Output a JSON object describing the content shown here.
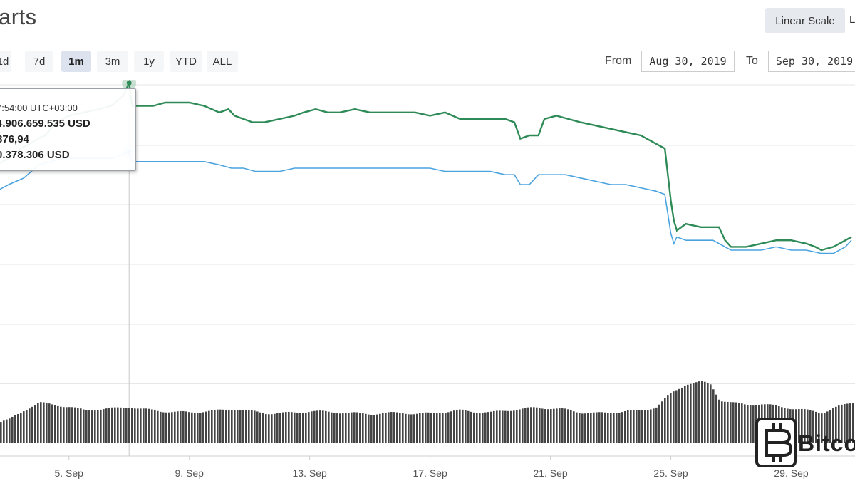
{
  "header": {
    "title": "arts"
  },
  "scale": {
    "linear_label": "Linear Scale",
    "log_label_partial": "L"
  },
  "range_buttons": [
    {
      "label": "1d",
      "active": false
    },
    {
      "label": "7d",
      "active": false
    },
    {
      "label": "1m",
      "active": true
    },
    {
      "label": "3m",
      "active": false
    },
    {
      "label": "1y",
      "active": false
    },
    {
      "label": "YTD",
      "active": false
    },
    {
      "label": "ALL",
      "active": false
    }
  ],
  "date_range": {
    "from_label": "From",
    "from_value": "Aug 30, 2019",
    "to_label": "To",
    "to_value": "Sep 30, 2019"
  },
  "tooltip": {
    "time": "7:54:00 UTC+03:00",
    "line1": "4.906.659.535 USD",
    "line2": "876,94",
    "line3": "0.378.306 USD"
  },
  "watermark": {
    "text": "Bitco"
  },
  "colors": {
    "market_cap": "#2e8b57",
    "price": "#4aa3df",
    "volume": "#444444",
    "grid": "#e6e6e6"
  },
  "chart_data": {
    "type": "line",
    "x_ticks": [
      "5. Sep",
      "9. Sep",
      "13. Sep",
      "17. Sep",
      "21. Sep",
      "25. Sep",
      "29. Sep"
    ],
    "x_range": [
      2.0,
      31.0
    ],
    "y_range": [
      0,
      100
    ],
    "grid": true,
    "legend": "none",
    "highlight_x": 7.0,
    "series": [
      {
        "role": "market_cap",
        "points": [
          [
            2.0,
            61
          ],
          [
            2.6,
            61
          ],
          [
            3.0,
            63
          ],
          [
            3.4,
            66
          ],
          [
            3.8,
            68
          ],
          [
            4.2,
            70
          ],
          [
            4.6,
            74
          ],
          [
            5.0,
            76
          ],
          [
            5.5,
            77
          ],
          [
            6.0,
            78
          ],
          [
            6.4,
            79
          ],
          [
            6.8,
            82
          ],
          [
            7.0,
            86
          ],
          [
            7.1,
            79
          ],
          [
            7.4,
            79
          ],
          [
            7.8,
            79
          ],
          [
            8.2,
            80
          ],
          [
            8.6,
            80
          ],
          [
            9.0,
            80
          ],
          [
            9.5,
            79
          ],
          [
            10.0,
            77
          ],
          [
            10.3,
            78
          ],
          [
            10.5,
            76
          ],
          [
            10.8,
            75
          ],
          [
            11.1,
            74
          ],
          [
            11.5,
            74
          ],
          [
            12.0,
            75
          ],
          [
            12.5,
            76
          ],
          [
            12.8,
            77
          ],
          [
            13.2,
            78
          ],
          [
            13.6,
            77
          ],
          [
            14.0,
            77
          ],
          [
            14.5,
            78
          ],
          [
            15.0,
            77
          ],
          [
            15.5,
            77
          ],
          [
            16.0,
            77
          ],
          [
            16.5,
            77
          ],
          [
            17.0,
            76
          ],
          [
            17.5,
            77
          ],
          [
            18.0,
            75
          ],
          [
            18.5,
            75
          ],
          [
            19.0,
            75
          ],
          [
            19.5,
            75
          ],
          [
            19.8,
            74
          ],
          [
            20.0,
            69
          ],
          [
            20.3,
            70
          ],
          [
            20.6,
            70
          ],
          [
            20.8,
            75
          ],
          [
            21.2,
            76
          ],
          [
            21.6,
            75
          ],
          [
            22.0,
            74
          ],
          [
            22.5,
            73
          ],
          [
            23.0,
            72
          ],
          [
            23.5,
            71
          ],
          [
            24.0,
            70
          ],
          [
            24.4,
            68
          ],
          [
            24.8,
            66
          ],
          [
            25.0,
            50
          ],
          [
            25.1,
            44
          ],
          [
            25.2,
            41
          ],
          [
            25.5,
            43
          ],
          [
            26.0,
            42
          ],
          [
            26.4,
            42
          ],
          [
            26.6,
            42
          ],
          [
            26.8,
            38
          ],
          [
            27.0,
            36
          ],
          [
            27.5,
            36
          ],
          [
            28.0,
            37
          ],
          [
            28.5,
            38
          ],
          [
            29.0,
            38
          ],
          [
            29.5,
            37
          ],
          [
            29.8,
            36
          ],
          [
            30.0,
            35
          ],
          [
            30.4,
            36
          ],
          [
            30.8,
            38
          ],
          [
            31.0,
            39
          ]
        ]
      },
      {
        "role": "price",
        "points": [
          [
            2.0,
            52
          ],
          [
            2.6,
            53
          ],
          [
            3.0,
            55
          ],
          [
            3.5,
            57
          ],
          [
            4.0,
            61
          ],
          [
            4.4,
            62
          ],
          [
            4.8,
            63
          ],
          [
            5.2,
            63
          ],
          [
            5.6,
            63
          ],
          [
            6.0,
            63
          ],
          [
            6.5,
            63
          ],
          [
            7.0,
            65
          ],
          [
            7.1,
            62
          ],
          [
            7.5,
            62
          ],
          [
            8.0,
            62
          ],
          [
            8.5,
            62
          ],
          [
            9.0,
            62
          ],
          [
            9.5,
            62
          ],
          [
            10.0,
            61
          ],
          [
            10.4,
            60
          ],
          [
            10.8,
            60
          ],
          [
            11.2,
            59
          ],
          [
            11.6,
            59
          ],
          [
            12.0,
            59
          ],
          [
            12.5,
            60
          ],
          [
            13.0,
            60
          ],
          [
            13.5,
            60
          ],
          [
            14.0,
            60
          ],
          [
            14.5,
            60
          ],
          [
            15.0,
            60
          ],
          [
            16.0,
            60
          ],
          [
            17.0,
            60
          ],
          [
            17.5,
            59
          ],
          [
            18.0,
            59
          ],
          [
            19.0,
            59
          ],
          [
            19.5,
            58
          ],
          [
            19.8,
            58
          ],
          [
            20.0,
            55
          ],
          [
            20.3,
            55
          ],
          [
            20.6,
            58
          ],
          [
            21.0,
            58
          ],
          [
            21.5,
            58
          ],
          [
            22.0,
            57
          ],
          [
            22.5,
            56
          ],
          [
            23.0,
            55
          ],
          [
            23.5,
            55
          ],
          [
            24.0,
            54
          ],
          [
            24.5,
            53
          ],
          [
            24.8,
            52
          ],
          [
            25.0,
            40
          ],
          [
            25.1,
            37
          ],
          [
            25.2,
            39
          ],
          [
            25.5,
            38
          ],
          [
            26.0,
            38
          ],
          [
            26.4,
            38
          ],
          [
            26.8,
            36
          ],
          [
            27.0,
            35
          ],
          [
            27.5,
            35
          ],
          [
            28.0,
            35
          ],
          [
            28.5,
            36
          ],
          [
            29.0,
            35
          ],
          [
            29.5,
            35
          ],
          [
            30.0,
            34
          ],
          [
            30.4,
            34
          ],
          [
            30.8,
            36
          ],
          [
            31.0,
            38
          ]
        ]
      },
      {
        "role": "volume",
        "points": [
          [
            2.0,
            22
          ],
          [
            3.0,
            34
          ],
          [
            3.5,
            48
          ],
          [
            4.0,
            58
          ],
          [
            4.5,
            55
          ],
          [
            5.0,
            52
          ],
          [
            5.5,
            47
          ],
          [
            6.0,
            49
          ],
          [
            6.5,
            50
          ],
          [
            7.0,
            52
          ],
          [
            7.4,
            49
          ],
          [
            8.0,
            46
          ],
          [
            8.5,
            45
          ],
          [
            9.0,
            44
          ],
          [
            9.5,
            46
          ],
          [
            10.0,
            47
          ],
          [
            10.5,
            49
          ],
          [
            11.0,
            46
          ],
          [
            11.5,
            43
          ],
          [
            12.0,
            43
          ],
          [
            12.5,
            44
          ],
          [
            13.0,
            46
          ],
          [
            13.5,
            45
          ],
          [
            14.0,
            44
          ],
          [
            14.5,
            43
          ],
          [
            15.0,
            42
          ],
          [
            15.5,
            43
          ],
          [
            16.0,
            44
          ],
          [
            16.5,
            42
          ],
          [
            17.0,
            43
          ],
          [
            17.5,
            45
          ],
          [
            18.0,
            47
          ],
          [
            18.5,
            45
          ],
          [
            19.0,
            44
          ],
          [
            19.5,
            47
          ],
          [
            20.0,
            49
          ],
          [
            20.5,
            51
          ],
          [
            21.0,
            50
          ],
          [
            21.5,
            48
          ],
          [
            22.0,
            44
          ],
          [
            22.5,
            43
          ],
          [
            23.0,
            44
          ],
          [
            23.5,
            46
          ],
          [
            24.0,
            47
          ],
          [
            24.5,
            52
          ],
          [
            25.0,
            72
          ],
          [
            25.5,
            85
          ],
          [
            26.0,
            88
          ],
          [
            26.3,
            84
          ],
          [
            26.6,
            62
          ],
          [
            27.0,
            58
          ],
          [
            27.5,
            55
          ],
          [
            28.0,
            56
          ],
          [
            28.5,
            53
          ],
          [
            29.0,
            50
          ],
          [
            29.5,
            47
          ],
          [
            30.0,
            44
          ],
          [
            30.5,
            52
          ],
          [
            31.0,
            58
          ]
        ]
      }
    ]
  }
}
